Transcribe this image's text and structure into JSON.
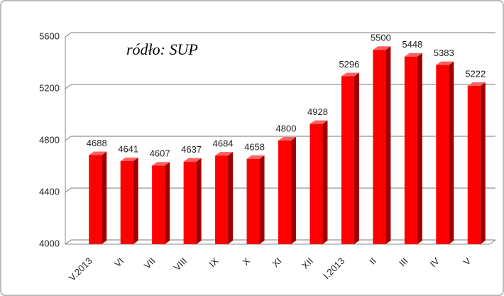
{
  "chart_data": {
    "type": "bar",
    "annotation": "ródło: SUP",
    "categories": [
      "V.2013",
      "VI",
      "VII",
      "VIII",
      "IX",
      "X",
      "XI",
      "XII",
      "I.2013",
      "II",
      "III",
      "IV",
      "V"
    ],
    "values": [
      4688,
      4641,
      4607,
      4637,
      4684,
      4658,
      4800,
      4928,
      5296,
      5500,
      5448,
      5383,
      5222
    ],
    "color": "#ff0000",
    "ylim": [
      4000,
      5600
    ],
    "yticks": [
      4000,
      4400,
      4800,
      5200,
      5600
    ],
    "grid": true
  }
}
